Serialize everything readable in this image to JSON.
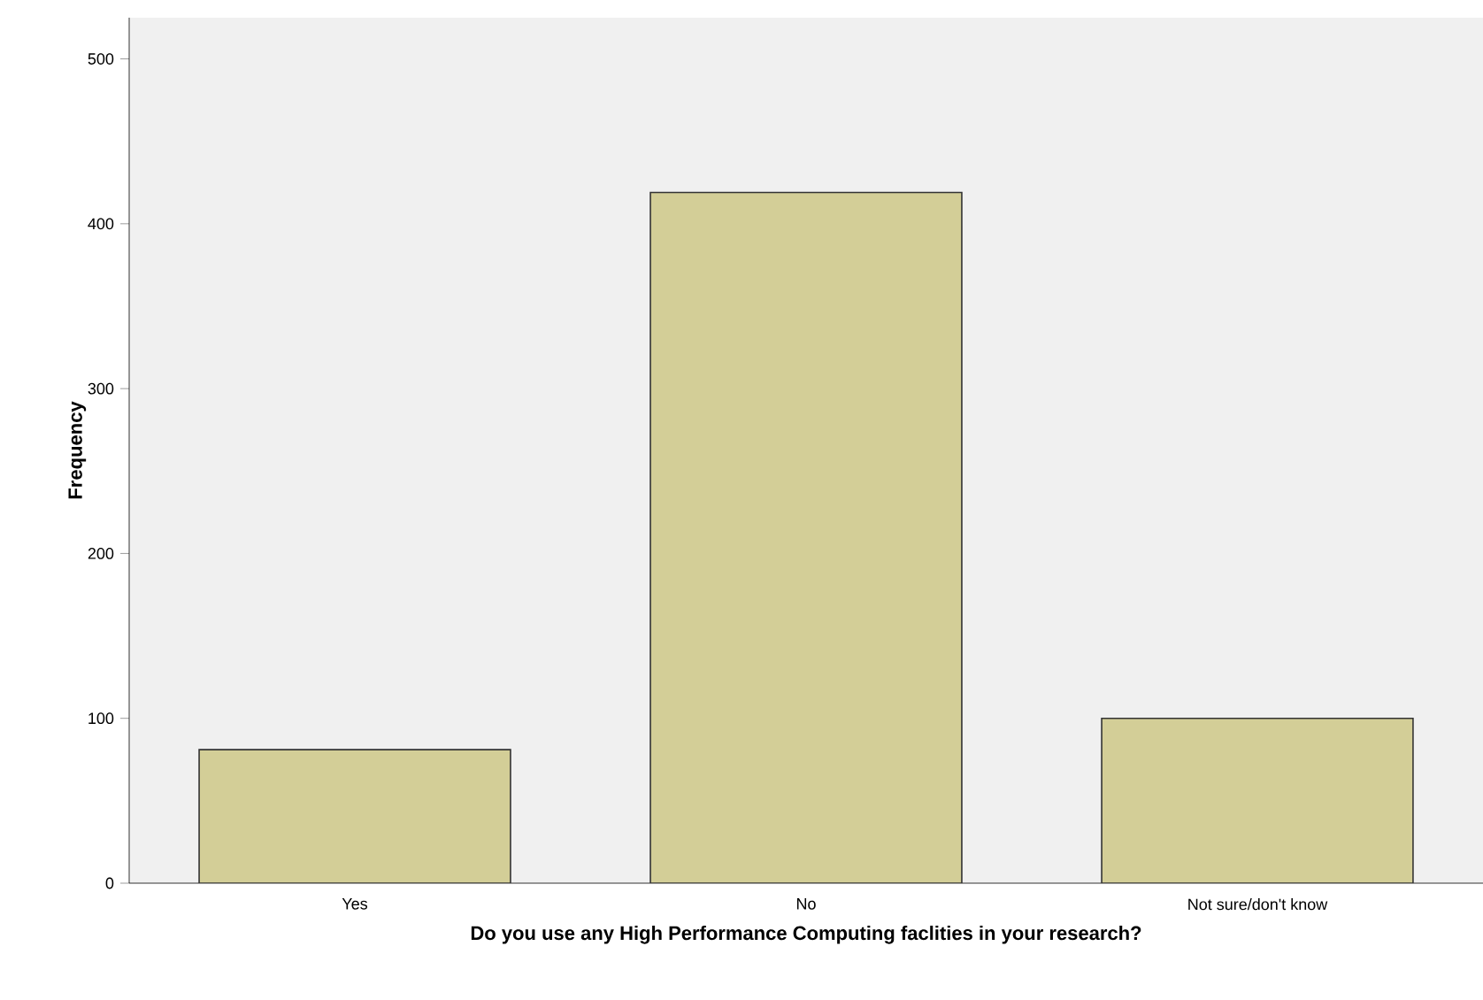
{
  "chart_data": {
    "type": "bar",
    "categories": [
      "Yes",
      "No",
      "Not sure/don't know"
    ],
    "values": [
      81,
      419,
      100
    ],
    "color": "#d3ce97",
    "xlabel": "Do you use any High Performance Computing faclities in your research?",
    "ylabel": "Frequency",
    "ylim": [
      0,
      525
    ],
    "yticks": [
      0,
      100,
      200,
      300,
      400,
      500
    ],
    "grid": false
  }
}
